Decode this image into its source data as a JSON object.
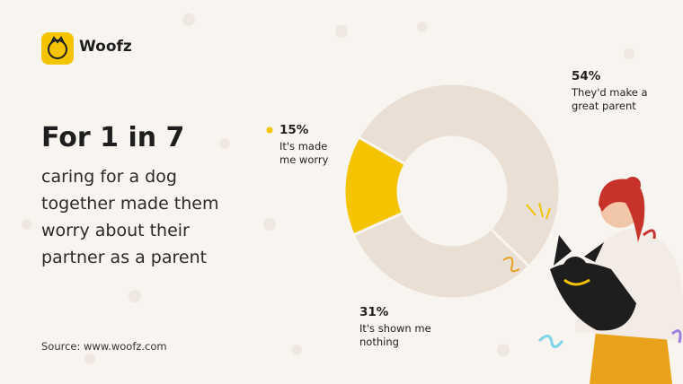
{
  "brand": "Woofz",
  "chart_data": {
    "type": "donut",
    "title": "For 1 in 7",
    "subtitle": "caring for a dog together made them worry about their partner as a parent",
    "source": "Source: www.woofz.com",
    "categories": [
      "They'd make a great parent",
      "It's shown me nothing",
      "It's made me worry"
    ],
    "values": [
      54,
      31,
      15
    ],
    "value_labels": [
      "54%",
      "31%",
      "15%"
    ],
    "colors": [
      "#e9dfd5",
      "#e9dfd5",
      "#f5c400"
    ]
  }
}
